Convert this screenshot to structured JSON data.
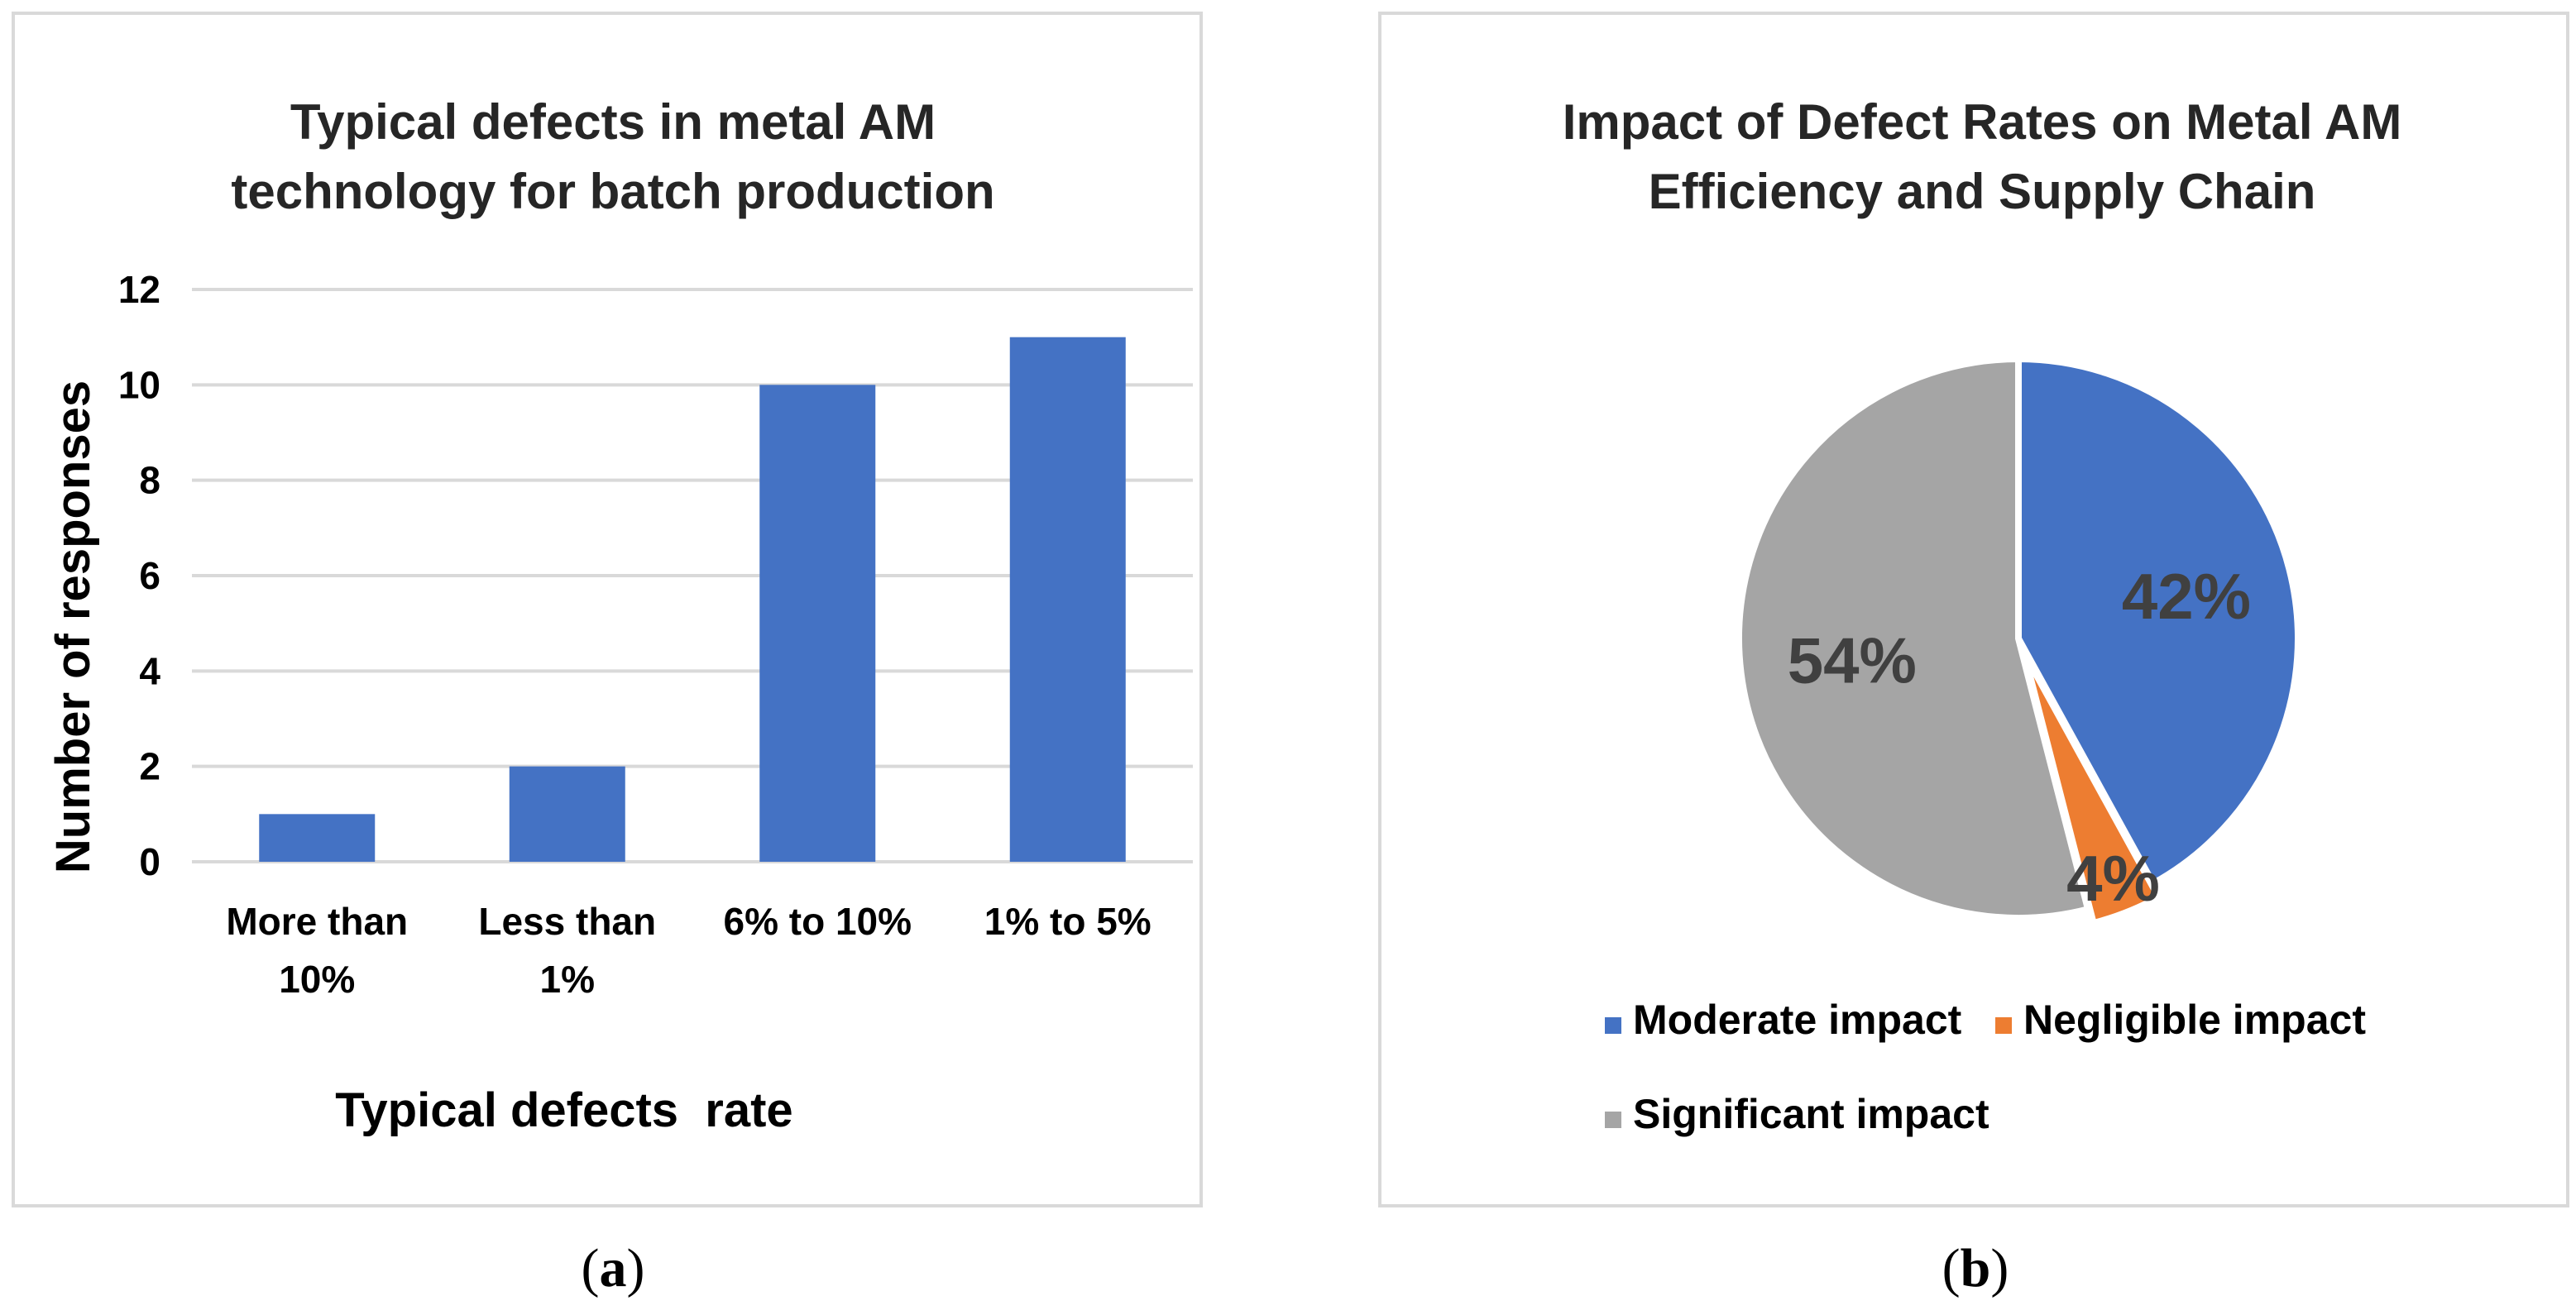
{
  "chart_data": [
    {
      "type": "bar",
      "title": [
        "Typical defects in metal AM",
        "technology for batch production"
      ],
      "categories": [
        [
          "More than",
          "10%"
        ],
        [
          "Less than",
          "1%"
        ],
        [
          "6% to 10%"
        ],
        [
          "1% to 5%"
        ]
      ],
      "values": [
        1,
        2,
        10,
        11
      ],
      "xlabel": "Typical defects  rate",
      "ylabel": "Number of responses",
      "ylim": [
        0,
        12
      ],
      "yticks": [
        0,
        2,
        4,
        6,
        8,
        10,
        12
      ],
      "grid": true,
      "color": "#4472C4",
      "caption": {
        "open": "(",
        "letter": "a",
        "close": ")"
      }
    },
    {
      "type": "pie",
      "title": [
        "Impact of Defect Rates on Metal AM",
        "Efficiency and Supply Chain"
      ],
      "slices": [
        {
          "label": "Moderate impact",
          "value": 42,
          "display": "42%",
          "color": "#4472C4"
        },
        {
          "label": "Negligible impact",
          "value": 4,
          "display": "4%",
          "color": "#ED7D31"
        },
        {
          "label": "Significant impact",
          "value": 54,
          "display": "54%",
          "color": "#A5A5A5"
        }
      ],
      "legend_position": "bottom",
      "caption": {
        "open": "(",
        "letter": "b",
        "close": ")"
      }
    }
  ]
}
